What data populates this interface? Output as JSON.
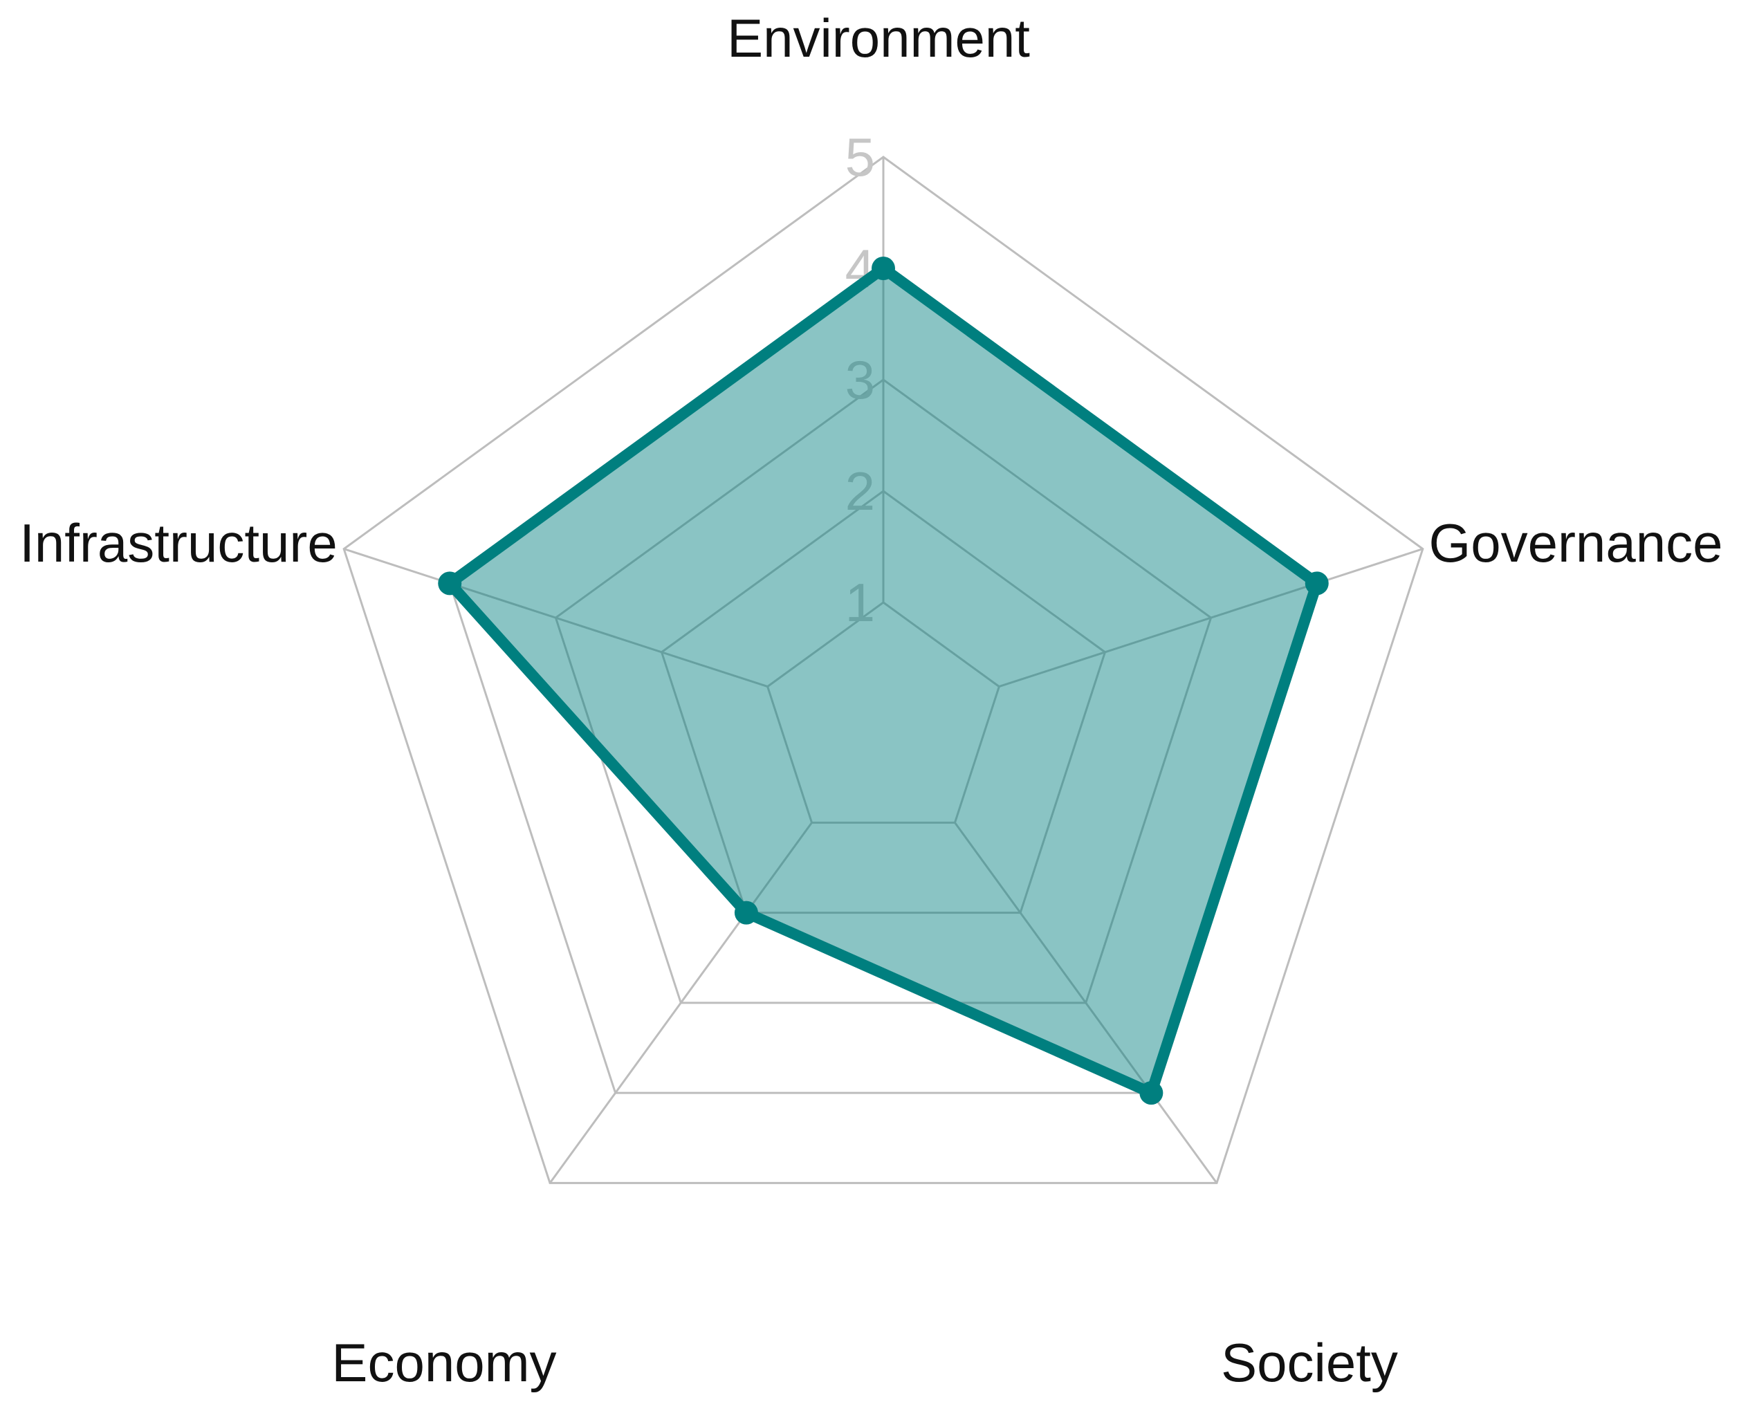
{
  "chart_data": {
    "type": "radar",
    "axes": [
      "Environment",
      "Governance",
      "Society",
      "Economy",
      "Infrastructure"
    ],
    "series": [
      {
        "values": [
          4,
          4,
          4,
          2,
          4
        ]
      }
    ],
    "rlim": [
      0,
      5
    ],
    "ticks": [
      "1",
      "2",
      "3",
      "4",
      "5"
    ],
    "grid": true,
    "legend": "none",
    "colors": {
      "line": "#007f7f",
      "fill": "#007f7f",
      "fill_opacity": 0.46,
      "grid": "#bdbdbd",
      "tick": "#c6c6c6",
      "label": "#111111"
    }
  }
}
